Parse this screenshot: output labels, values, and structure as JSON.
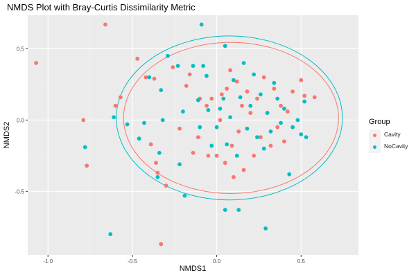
{
  "chart_data": {
    "type": "scatter",
    "title": "NMDS Plot with Bray-Curtis Dissimilarity Metric",
    "xlabel": "NMDS1",
    "ylabel": "NMDS2",
    "xlim": [
      -1.12,
      0.84
    ],
    "ylim": [
      -0.945,
      0.735
    ],
    "x_ticks": [
      -1.0,
      -0.5,
      0.0,
      0.5
    ],
    "x_tick_labels": [
      "-1.0",
      "-0.5",
      "0.0",
      "0.5"
    ],
    "y_ticks": [
      -0.5,
      0.0,
      0.5
    ],
    "y_tick_labels": [
      "-0.5",
      "0.0",
      "0.5"
    ],
    "grid": true,
    "legend": {
      "title": "Group",
      "position": "right",
      "items": [
        {
          "label": "Cavity",
          "color": "#F8766D"
        },
        {
          "label": "NoCavity",
          "color": "#00BFC4"
        }
      ]
    },
    "series": [
      {
        "name": "Cavity",
        "color": "#F8766D",
        "ellipse": {
          "cx": 0.085,
          "cy": 0.015,
          "rx": 0.637,
          "ry": 0.53
        },
        "points": [
          {
            "x": -1.07,
            "y": 0.4
          },
          {
            "x": -0.79,
            "y": 0.0
          },
          {
            "x": -0.77,
            "y": -0.32
          },
          {
            "x": -0.66,
            "y": 0.67
          },
          {
            "x": -0.6,
            "y": 0.1
          },
          {
            "x": -0.57,
            "y": 0.16
          },
          {
            "x": -0.47,
            "y": 0.43
          },
          {
            "x": -0.42,
            "y": 0.3
          },
          {
            "x": -0.37,
            "y": 0.29
          },
          {
            "x": -0.39,
            "y": -0.17
          },
          {
            "x": -0.36,
            "y": -0.3
          },
          {
            "x": -0.35,
            "y": -0.37
          },
          {
            "x": -0.33,
            "y": -0.87
          },
          {
            "x": -0.3,
            "y": -0.46
          },
          {
            "x": -0.26,
            "y": 0.37
          },
          {
            "x": -0.22,
            "y": -0.06
          },
          {
            "x": -0.18,
            "y": 0.24
          },
          {
            "x": -0.16,
            "y": 0.32
          },
          {
            "x": -0.14,
            "y": -0.23
          },
          {
            "x": -0.11,
            "y": -0.12
          },
          {
            "x": -0.1,
            "y": 0.15
          },
          {
            "x": -0.06,
            "y": 0.1
          },
          {
            "x": -0.05,
            "y": -0.25
          },
          {
            "x": -0.03,
            "y": 0.15
          },
          {
            "x": 0.0,
            "y": -0.25
          },
          {
            "x": 0.02,
            "y": 0.0
          },
          {
            "x": 0.03,
            "y": 0.18
          },
          {
            "x": 0.05,
            "y": -0.3
          },
          {
            "x": 0.06,
            "y": 0.22
          },
          {
            "x": 0.08,
            "y": 0.35
          },
          {
            "x": 0.09,
            "y": -0.18
          },
          {
            "x": 0.1,
            "y": -0.4
          },
          {
            "x": 0.12,
            "y": 0.27
          },
          {
            "x": 0.13,
            "y": -0.08
          },
          {
            "x": 0.15,
            "y": 0.1
          },
          {
            "x": 0.16,
            "y": -0.35
          },
          {
            "x": 0.18,
            "y": 0.2
          },
          {
            "x": 0.2,
            "y": 0.05
          },
          {
            "x": 0.22,
            "y": -0.25
          },
          {
            "x": 0.24,
            "y": 0.15
          },
          {
            "x": 0.26,
            "y": -0.12
          },
          {
            "x": 0.28,
            "y": 0.3
          },
          {
            "x": 0.3,
            "y": 0.05
          },
          {
            "x": 0.32,
            "y": -0.18
          },
          {
            "x": 0.34,
            "y": 0.22
          },
          {
            "x": 0.36,
            "y": -0.05
          },
          {
            "x": 0.38,
            "y": 0.1
          },
          {
            "x": 0.4,
            "y": -0.15
          },
          {
            "x": 0.42,
            "y": 0.06
          },
          {
            "x": 0.45,
            "y": 0.2
          },
          {
            "x": 0.5,
            "y": 0.28
          },
          {
            "x": 0.52,
            "y": 0.17
          },
          {
            "x": 0.58,
            "y": 0.16
          }
        ]
      },
      {
        "name": "NoCavity",
        "color": "#00BFC4",
        "ellipse": {
          "cx": 0.075,
          "cy": 0.015,
          "rx": 0.67,
          "ry": 0.575
        },
        "points": [
          {
            "x": -0.78,
            "y": -0.19
          },
          {
            "x": -0.63,
            "y": -0.8
          },
          {
            "x": -0.61,
            "y": 0.02
          },
          {
            "x": -0.53,
            "y": -0.03
          },
          {
            "x": -0.46,
            "y": -0.13
          },
          {
            "x": -0.43,
            "y": -0.02
          },
          {
            "x": -0.4,
            "y": 0.3
          },
          {
            "x": -0.35,
            "y": -0.4
          },
          {
            "x": -0.34,
            "y": -0.23
          },
          {
            "x": -0.33,
            "y": 0.21
          },
          {
            "x": -0.32,
            "y": 0.0
          },
          {
            "x": -0.29,
            "y": 0.45
          },
          {
            "x": -0.23,
            "y": 0.38
          },
          {
            "x": -0.22,
            "y": -0.31
          },
          {
            "x": -0.2,
            "y": 0.06
          },
          {
            "x": -0.19,
            "y": -0.53
          },
          {
            "x": -0.14,
            "y": 0.38
          },
          {
            "x": -0.11,
            "y": 0.14
          },
          {
            "x": -0.1,
            "y": -0.05
          },
          {
            "x": -0.09,
            "y": 0.67
          },
          {
            "x": -0.08,
            "y": 0.38
          },
          {
            "x": -0.06,
            "y": 0.31
          },
          {
            "x": -0.05,
            "y": 0.07
          },
          {
            "x": -0.03,
            "y": -0.18
          },
          {
            "x": 0.0,
            "y": -0.05
          },
          {
            "x": 0.02,
            "y": 0.08
          },
          {
            "x": 0.04,
            "y": 0.15
          },
          {
            "x": 0.05,
            "y": 0.52
          },
          {
            "x": 0.06,
            "y": -0.17
          },
          {
            "x": 0.08,
            "y": 0.02
          },
          {
            "x": 0.1,
            "y": 0.28
          },
          {
            "x": 0.12,
            "y": -0.25
          },
          {
            "x": 0.14,
            "y": 0.16
          },
          {
            "x": 0.16,
            "y": 0.4
          },
          {
            "x": 0.18,
            "y": -0.06
          },
          {
            "x": 0.2,
            "y": 0.1
          },
          {
            "x": 0.22,
            "y": 0.32
          },
          {
            "x": 0.24,
            "y": -0.12
          },
          {
            "x": 0.26,
            "y": 0.18
          },
          {
            "x": 0.28,
            "y": -0.2
          },
          {
            "x": 0.3,
            "y": 0.05
          },
          {
            "x": 0.32,
            "y": -0.08
          },
          {
            "x": 0.34,
            "y": 0.26
          },
          {
            "x": 0.36,
            "y": 0.15
          },
          {
            "x": 0.38,
            "y": -0.02
          },
          {
            "x": 0.4,
            "y": 0.08
          },
          {
            "x": 0.43,
            "y": -0.38
          },
          {
            "x": 0.45,
            "y": -0.05
          },
          {
            "x": 0.48,
            "y": 0.0
          },
          {
            "x": 0.5,
            "y": -0.1
          },
          {
            "x": 0.52,
            "y": 0.13
          },
          {
            "x": 0.53,
            "y": -0.12
          },
          {
            "x": 0.05,
            "y": -0.63
          },
          {
            "x": 0.13,
            "y": -0.63
          },
          {
            "x": 0.29,
            "y": -0.76
          }
        ]
      }
    ]
  }
}
